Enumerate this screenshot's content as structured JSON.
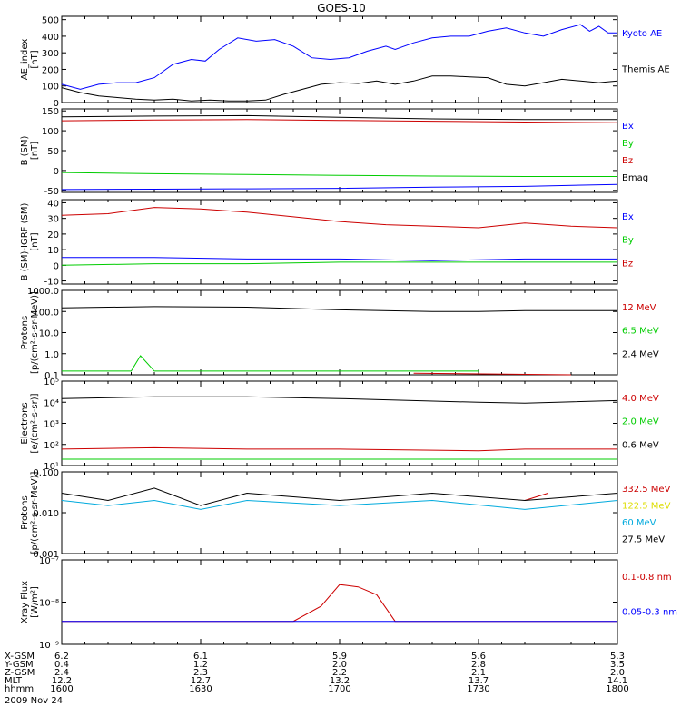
{
  "title": "GOES-10",
  "date_label": "2009 Nov 24",
  "colors": {
    "blue": "#0000ff",
    "red": "#cc0000",
    "green": "#00cc00",
    "black": "#000000",
    "cyan": "#00aadd",
    "yellow": "#dddd00"
  },
  "chart_data": [
    {
      "type": "line",
      "ylabel": "AE_index\n[nT]",
      "yscale": "linear",
      "ylim": [
        0,
        520
      ],
      "yticks": [
        0,
        100,
        200,
        300,
        400,
        500
      ],
      "ytick_labels": [
        "0",
        "100",
        "200",
        "300",
        "400",
        "500"
      ],
      "legend": [
        "Kyoto AE",
        "Themis AE"
      ],
      "series": [
        {
          "name": "Kyoto AE",
          "color": "#0000ff",
          "values": [
            [
              0,
              110
            ],
            [
              4,
              80
            ],
            [
              8,
              110
            ],
            [
              12,
              120
            ],
            [
              16,
              120
            ],
            [
              20,
              150
            ],
            [
              24,
              230
            ],
            [
              28,
              260
            ],
            [
              31,
              250
            ],
            [
              34,
              320
            ],
            [
              38,
              390
            ],
            [
              42,
              370
            ],
            [
              46,
              380
            ],
            [
              50,
              340
            ],
            [
              54,
              270
            ],
            [
              58,
              260
            ],
            [
              62,
              270
            ],
            [
              66,
              310
            ],
            [
              70,
              340
            ],
            [
              72,
              320
            ],
            [
              76,
              360
            ],
            [
              80,
              390
            ],
            [
              84,
              400
            ],
            [
              88,
              400
            ],
            [
              92,
              430
            ],
            [
              96,
              450
            ],
            [
              100,
              420
            ],
            [
              104,
              400
            ],
            [
              108,
              440
            ],
            [
              112,
              470
            ],
            [
              114,
              430
            ],
            [
              116,
              460
            ],
            [
              118,
              420
            ],
            [
              120,
              420
            ]
          ]
        },
        {
          "name": "Themis AE",
          "color": "#000000",
          "values": [
            [
              0,
              90
            ],
            [
              4,
              60
            ],
            [
              8,
              40
            ],
            [
              12,
              30
            ],
            [
              16,
              20
            ],
            [
              20,
              15
            ],
            [
              24,
              20
            ],
            [
              28,
              10
            ],
            [
              32,
              15
            ],
            [
              36,
              10
            ],
            [
              40,
              10
            ],
            [
              44,
              15
            ],
            [
              48,
              50
            ],
            [
              52,
              80
            ],
            [
              56,
              110
            ],
            [
              60,
              120
            ],
            [
              64,
              115
            ],
            [
              68,
              130
            ],
            [
              72,
              110
            ],
            [
              76,
              130
            ],
            [
              80,
              160
            ],
            [
              84,
              160
            ],
            [
              88,
              155
            ],
            [
              92,
              150
            ],
            [
              96,
              110
            ],
            [
              100,
              100
            ],
            [
              104,
              120
            ],
            [
              108,
              140
            ],
            [
              112,
              130
            ],
            [
              116,
              120
            ],
            [
              120,
              130
            ]
          ]
        }
      ]
    },
    {
      "type": "line",
      "ylabel": "B (SM)\n[nT]",
      "yscale": "linear",
      "ylim": [
        -55,
        155
      ],
      "yticks": [
        -50,
        0,
        50,
        100,
        150
      ],
      "ytick_labels": [
        "-50",
        "0",
        "50",
        "100",
        "150"
      ],
      "legend": [
        "Bx",
        "By",
        "Bz",
        "Bmag"
      ],
      "series": [
        {
          "name": "Bx",
          "color": "#0000ff",
          "values": [
            [
              0,
              -48
            ],
            [
              20,
              -47
            ],
            [
              40,
              -46
            ],
            [
              60,
              -45
            ],
            [
              80,
              -42
            ],
            [
              100,
              -40
            ],
            [
              120,
              -35
            ]
          ]
        },
        {
          "name": "By",
          "color": "#00cc00",
          "values": [
            [
              0,
              -5
            ],
            [
              20,
              -8
            ],
            [
              40,
              -10
            ],
            [
              60,
              -12
            ],
            [
              80,
              -14
            ],
            [
              100,
              -15
            ],
            [
              120,
              -15
            ]
          ]
        },
        {
          "name": "Bz",
          "color": "#cc0000",
          "values": [
            [
              0,
              125
            ],
            [
              20,
              127
            ],
            [
              40,
              128
            ],
            [
              60,
              126
            ],
            [
              80,
              124
            ],
            [
              100,
              122
            ],
            [
              120,
              120
            ]
          ]
        },
        {
          "name": "Bmag",
          "color": "#000000",
          "values": [
            [
              0,
              135
            ],
            [
              20,
              137
            ],
            [
              40,
              138
            ],
            [
              60,
              134
            ],
            [
              80,
              130
            ],
            [
              100,
              128
            ],
            [
              120,
              128
            ]
          ]
        }
      ]
    },
    {
      "type": "line",
      "ylabel": "B (SM)-IGRF (SM)\n[nT]",
      "yscale": "linear",
      "ylim": [
        -12,
        42
      ],
      "yticks": [
        -10,
        0,
        10,
        20,
        30,
        40
      ],
      "ytick_labels": [
        "-10",
        "0",
        "10",
        "20",
        "30",
        "40"
      ],
      "legend": [
        "Bx",
        "By",
        "Bz"
      ],
      "series": [
        {
          "name": "Bx",
          "color": "#0000ff",
          "values": [
            [
              0,
              5
            ],
            [
              20,
              5
            ],
            [
              40,
              4
            ],
            [
              60,
              4
            ],
            [
              80,
              3
            ],
            [
              100,
              4
            ],
            [
              120,
              4
            ]
          ]
        },
        {
          "name": "By",
          "color": "#00cc00",
          "values": [
            [
              0,
              0
            ],
            [
              20,
              1
            ],
            [
              40,
              1
            ],
            [
              60,
              2
            ],
            [
              80,
              2
            ],
            [
              100,
              2
            ],
            [
              120,
              2
            ]
          ]
        },
        {
          "name": "Bz",
          "color": "#cc0000",
          "values": [
            [
              0,
              32
            ],
            [
              10,
              33
            ],
            [
              20,
              37
            ],
            [
              30,
              36
            ],
            [
              40,
              34
            ],
            [
              50,
              31
            ],
            [
              60,
              28
            ],
            [
              70,
              26
            ],
            [
              80,
              25
            ],
            [
              90,
              24
            ],
            [
              100,
              27
            ],
            [
              110,
              25
            ],
            [
              120,
              24
            ]
          ]
        }
      ]
    },
    {
      "type": "line",
      "ylabel": "Protons\n[p/(cm²-s-sr-MeV)]",
      "yscale": "log",
      "ylim": [
        0.1,
        1000
      ],
      "yticks": [
        0.1,
        1,
        10,
        100,
        1000
      ],
      "ytick_labels": [
        "0.1",
        "1.0",
        "10.0",
        "100.0",
        "1000.0"
      ],
      "legend": [
        "12 MeV",
        "6.5 MeV",
        "2.4 MeV"
      ],
      "series": [
        {
          "name": "12 MeV",
          "color": "#cc0000",
          "values": [
            [
              76,
              0.12
            ],
            [
              110,
              0.1
            ]
          ]
        },
        {
          "name": "6.5 MeV",
          "color": "#00cc00",
          "values": [
            [
              0,
              0.15
            ],
            [
              15,
              0.15
            ],
            [
              17,
              0.8
            ],
            [
              20,
              0.15
            ],
            [
              40,
              0.15
            ],
            [
              50,
              0.15
            ],
            [
              70,
              0.15
            ],
            [
              90,
              0.15
            ]
          ]
        },
        {
          "name": "2.4 MeV",
          "color": "#000000",
          "values": [
            [
              0,
              150
            ],
            [
              20,
              170
            ],
            [
              40,
              160
            ],
            [
              60,
              120
            ],
            [
              80,
              100
            ],
            [
              90,
              100
            ],
            [
              100,
              110
            ],
            [
              120,
              110
            ]
          ]
        }
      ]
    },
    {
      "type": "line",
      "ylabel": "Electrons\n[e/(cm²-s-sr)]",
      "yscale": "log",
      "ylim": [
        10,
        100000
      ],
      "yticks": [
        10,
        100,
        1000,
        10000,
        100000
      ],
      "ytick_labels": [
        "10¹",
        "10²",
        "10³",
        "10⁴",
        "10⁵"
      ],
      "legend": [
        "4.0 MeV",
        "2.0 MeV",
        "0.6 MeV"
      ],
      "series": [
        {
          "name": "4.0 MeV",
          "color": "#cc0000",
          "values": [
            [
              0,
              60
            ],
            [
              20,
              70
            ],
            [
              40,
              60
            ],
            [
              60,
              60
            ],
            [
              90,
              50
            ],
            [
              100,
              60
            ],
            [
              120,
              60
            ]
          ]
        },
        {
          "name": "2.0 MeV",
          "color": "#00cc00",
          "values": [
            [
              0,
              20
            ],
            [
              20,
              20
            ],
            [
              40,
              20
            ],
            [
              60,
              20
            ],
            [
              90,
              20
            ],
            [
              100,
              20
            ],
            [
              120,
              20
            ]
          ]
        },
        {
          "name": "0.6 MeV",
          "color": "#000000",
          "values": [
            [
              0,
              15000
            ],
            [
              20,
              18000
            ],
            [
              40,
              18000
            ],
            [
              60,
              15000
            ],
            [
              90,
              10000
            ],
            [
              100,
              9000
            ],
            [
              120,
              12000
            ]
          ]
        }
      ]
    },
    {
      "type": "line",
      "ylabel": "Protons\n[p/(cm²-s-sr-MeV)]",
      "yscale": "log",
      "ylim": [
        0.001,
        0.1
      ],
      "yticks": [
        0.001,
        0.01,
        0.1
      ],
      "ytick_labels": [
        "0.001",
        "0.010",
        "0.100"
      ],
      "legend": [
        "332.5 MeV",
        "122.5 MeV",
        "60 MeV",
        "27.5 MeV"
      ],
      "series": [
        {
          "name": "332.5 MeV",
          "color": "#cc0000",
          "values": [
            [
              100,
              0.02
            ],
            [
              105,
              0.03
            ]
          ]
        },
        {
          "name": "122.5 MeV",
          "color": "#dddd00",
          "values": [
            [
              104,
              0.02
            ]
          ]
        },
        {
          "name": "60 MeV",
          "color": "#00aadd",
          "values": [
            [
              0,
              0.02
            ],
            [
              10,
              0.015
            ],
            [
              20,
              0.02
            ],
            [
              30,
              0.012
            ],
            [
              40,
              0.02
            ],
            [
              60,
              0.015
            ],
            [
              80,
              0.02
            ],
            [
              100,
              0.012
            ],
            [
              120,
              0.02
            ]
          ]
        },
        {
          "name": "27.5 MeV",
          "color": "#000000",
          "values": [
            [
              0,
              0.03
            ],
            [
              10,
              0.02
            ],
            [
              20,
              0.04
            ],
            [
              30,
              0.015
            ],
            [
              40,
              0.03
            ],
            [
              60,
              0.02
            ],
            [
              80,
              0.03
            ],
            [
              100,
              0.02
            ],
            [
              120,
              0.03
            ]
          ]
        }
      ]
    },
    {
      "type": "line",
      "ylabel": "Xray Flux\n[W/m²]",
      "yscale": "log",
      "ylim": [
        1e-09,
        1e-07
      ],
      "yticks": [
        1e-09,
        1e-08,
        1e-07
      ],
      "ytick_labels": [
        "10⁻⁹",
        "10⁻⁸",
        "10⁻⁷"
      ],
      "legend": [
        "0.1-0.8 nm",
        "0.05-0.3 nm"
      ],
      "series": [
        {
          "name": "0.1-0.8 nm",
          "color": "#cc0000",
          "values": [
            [
              0,
              3.5e-09
            ],
            [
              50,
              3.5e-09
            ],
            [
              56,
              8e-09
            ],
            [
              60,
              2.6e-08
            ],
            [
              64,
              2.3e-08
            ],
            [
              68,
              1.5e-08
            ],
            [
              72,
              3.5e-09
            ],
            [
              120,
              3.5e-09
            ]
          ]
        },
        {
          "name": "0.05-0.3 nm",
          "color": "#0000ff",
          "values": [
            [
              0,
              3.5e-09
            ],
            [
              120,
              3.5e-09
            ]
          ]
        }
      ]
    }
  ],
  "x_axis": {
    "row_labels": [
      "X-GSM",
      "Y-GSM",
      "Z-GSM",
      "MLT",
      "hhmm"
    ],
    "ticks": [
      {
        "x": 0,
        "values": [
          "6.2",
          "0.4",
          "2.4",
          "12.2",
          "1600"
        ]
      },
      {
        "x": 30,
        "values": [
          "6.1",
          "1.2",
          "2.3",
          "12.7",
          "1630"
        ]
      },
      {
        "x": 60,
        "values": [
          "5.9",
          "2.0",
          "2.2",
          "13.2",
          "1700"
        ]
      },
      {
        "x": 90,
        "values": [
          "5.6",
          "2.8",
          "2.1",
          "13.7",
          "1730"
        ]
      },
      {
        "x": 120,
        "values": [
          "5.3",
          "3.5",
          "2.0",
          "14.1",
          "1800"
        ]
      }
    ]
  }
}
